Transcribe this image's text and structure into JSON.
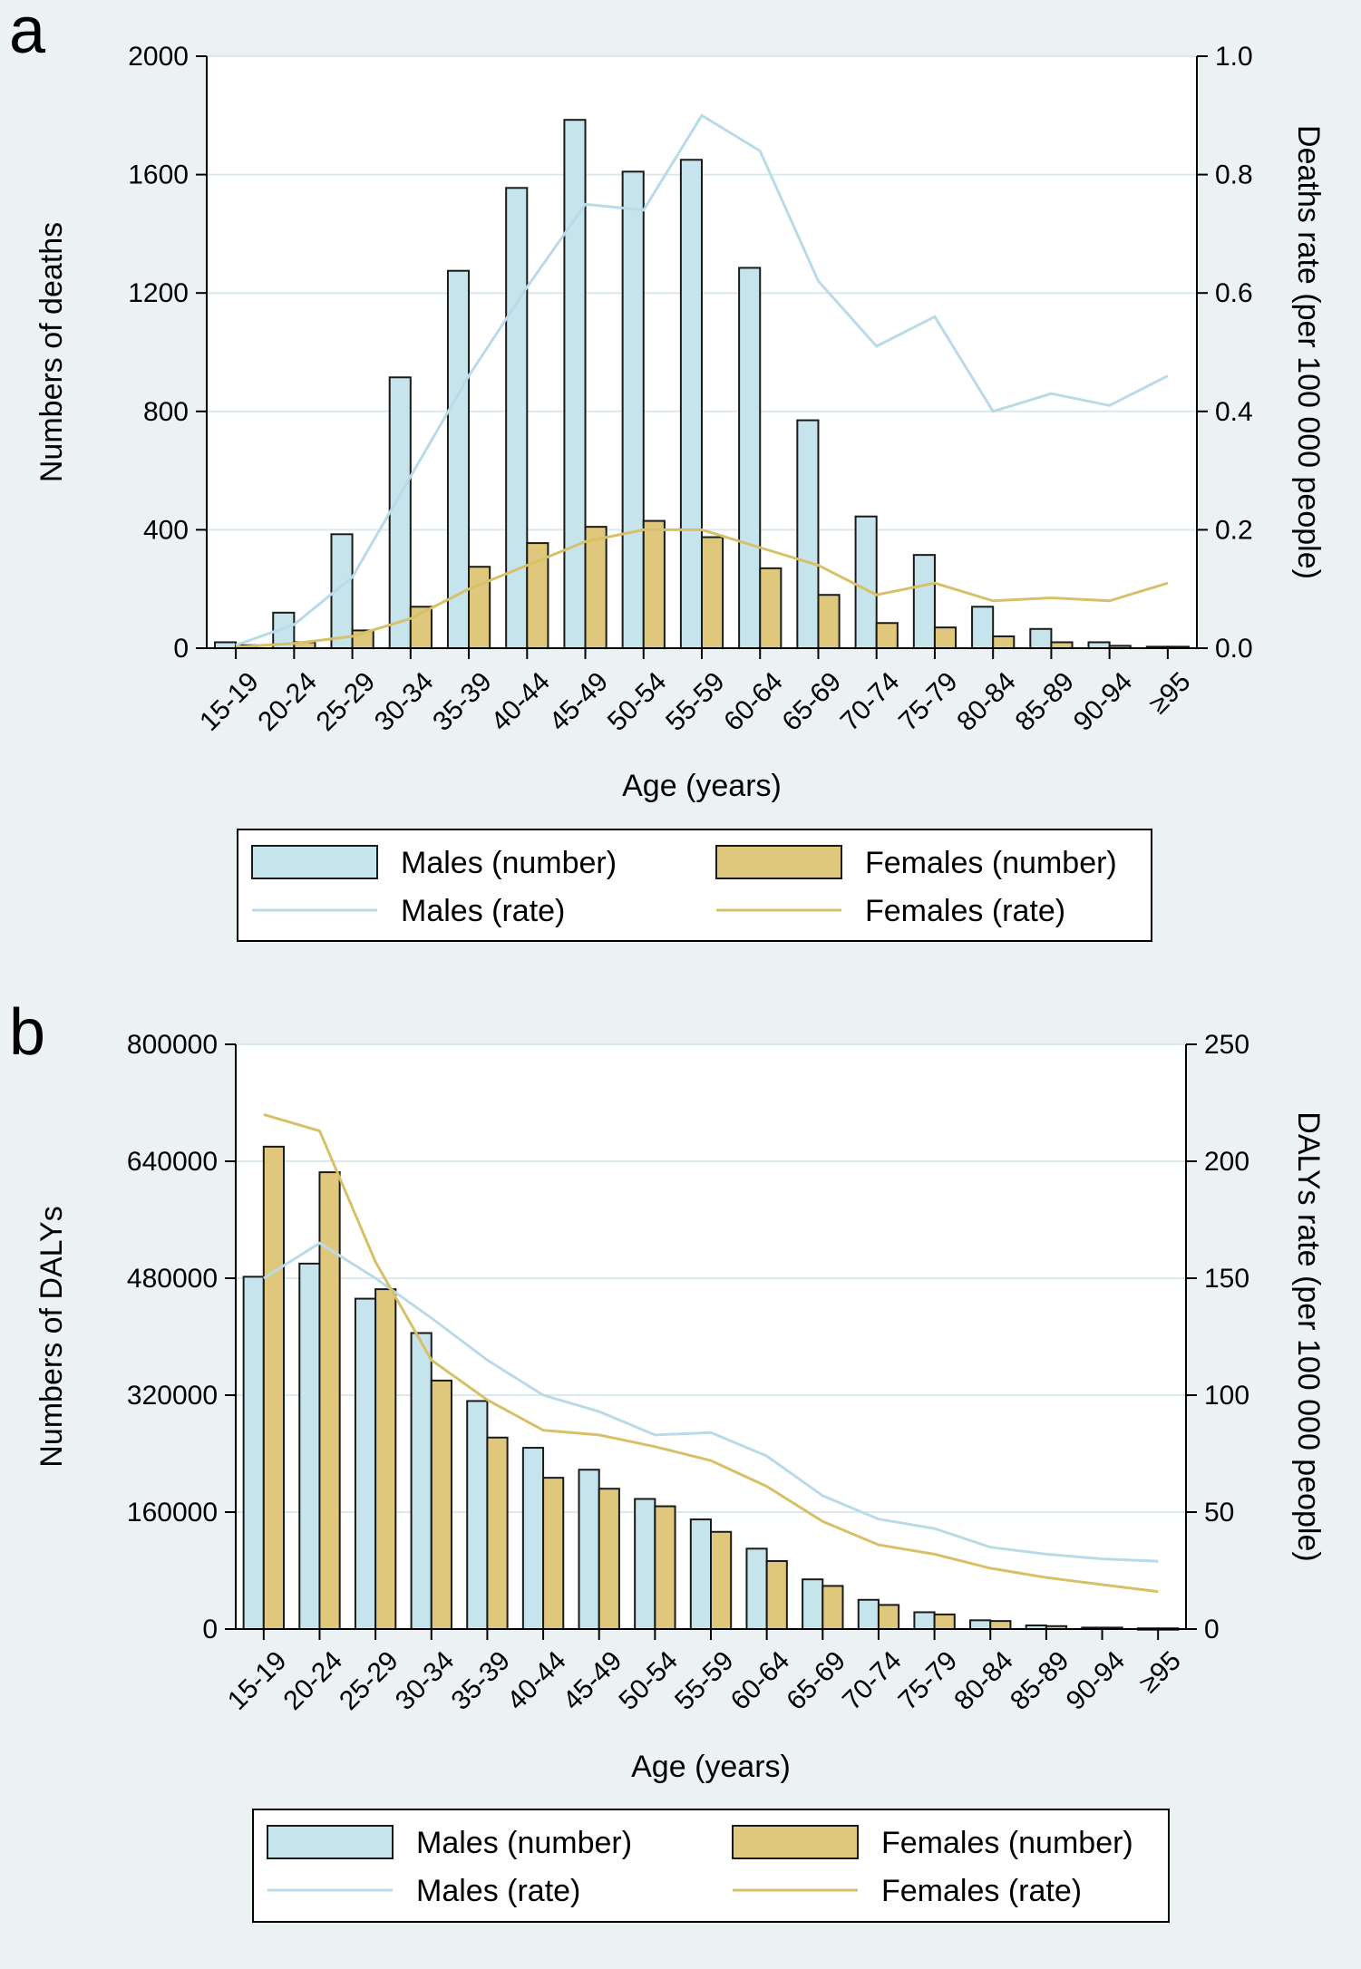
{
  "colors": {
    "males": "#c5e4ec",
    "females": "#dfc87c",
    "males_line": "#b9dbe8",
    "females_line": "#d8c068",
    "bar_stroke": "#1a1a1a",
    "grid": "#dbe8ee",
    "plot_bg": "#ffffff"
  },
  "chart_data": [
    {
      "type": "bar",
      "panel_label": "a",
      "title": "",
      "categories": [
        "15-19",
        "20-24",
        "25-29",
        "30-34",
        "35-39",
        "40-44",
        "45-49",
        "50-54",
        "55-59",
        "60-64",
        "65-69",
        "70-74",
        "75-79",
        "80-84",
        "85-89",
        "90-94",
        "≥95"
      ],
      "xlabel": "Age (years)",
      "ylabel": "Numbers of deaths",
      "y2label": "Deaths rate (per 100 000 people)",
      "ylim": [
        0,
        2000
      ],
      "y2lim": [
        0,
        1.0
      ],
      "yticks": [
        "0",
        "400",
        "800",
        "1200",
        "1600",
        "2000"
      ],
      "y2ticks": [
        "0.0",
        "0.2",
        "0.4",
        "0.6",
        "0.8",
        "1.0"
      ],
      "series": [
        {
          "name": "Males (number)",
          "kind": "bar",
          "axis": "left",
          "values": [
            20,
            120,
            385,
            915,
            1275,
            1555,
            1785,
            1610,
            1650,
            1285,
            770,
            445,
            315,
            140,
            65,
            20,
            5
          ]
        },
        {
          "name": "Females (number)",
          "kind": "bar",
          "axis": "left",
          "values": [
            10,
            20,
            60,
            140,
            275,
            355,
            410,
            430,
            375,
            270,
            180,
            85,
            70,
            40,
            20,
            8,
            5
          ]
        },
        {
          "name": "Males (rate)",
          "kind": "line",
          "axis": "right",
          "values": [
            0.005,
            0.04,
            0.12,
            0.29,
            0.46,
            0.61,
            0.75,
            0.74,
            0.9,
            0.84,
            0.62,
            0.51,
            0.56,
            0.4,
            0.43,
            0.41,
            0.46
          ]
        },
        {
          "name": "Females (rate)",
          "kind": "line",
          "axis": "right",
          "values": [
            0.002,
            0.008,
            0.02,
            0.05,
            0.1,
            0.14,
            0.18,
            0.2,
            0.2,
            0.17,
            0.14,
            0.09,
            0.11,
            0.08,
            0.085,
            0.08,
            0.11
          ]
        }
      ],
      "legend": [
        {
          "label": "Males (number)",
          "series": 0,
          "kind": "bar"
        },
        {
          "label": "Females (number)",
          "series": 1,
          "kind": "bar"
        },
        {
          "label": "Males (rate)",
          "series": 2,
          "kind": "line"
        },
        {
          "label": "Females (rate)",
          "series": 3,
          "kind": "line"
        }
      ],
      "legend_position": "bottom",
      "grid": true
    },
    {
      "type": "bar",
      "panel_label": "b",
      "title": "",
      "categories": [
        "15-19",
        "20-24",
        "25-29",
        "30-34",
        "35-39",
        "40-44",
        "45-49",
        "50-54",
        "55-59",
        "60-64",
        "65-69",
        "70-74",
        "75-79",
        "80-84",
        "85-89",
        "90-94",
        "≥95"
      ],
      "xlabel": "Age (years)",
      "ylabel": "Numbers of DALYs",
      "y2label": "DALYs rate (per 100 000 people)",
      "ylim": [
        0,
        800000
      ],
      "y2lim": [
        0,
        250
      ],
      "yticks": [
        "0",
        "160000",
        "320000",
        "480000",
        "640000",
        "800000"
      ],
      "y2ticks": [
        "0",
        "50",
        "100",
        "150",
        "200",
        "250"
      ],
      "series": [
        {
          "name": "Males (number)",
          "kind": "bar",
          "axis": "left",
          "values": [
            482000,
            500000,
            452000,
            405000,
            312000,
            248000,
            218000,
            178000,
            150000,
            110000,
            68000,
            40000,
            23000,
            12000,
            5000,
            2000,
            1000
          ]
        },
        {
          "name": "Females (number)",
          "kind": "bar",
          "axis": "left",
          "values": [
            660000,
            625000,
            465000,
            340000,
            262000,
            207000,
            192000,
            168000,
            133000,
            93000,
            59000,
            33000,
            20000,
            11000,
            4000,
            2000,
            1000
          ]
        },
        {
          "name": "Males (rate)",
          "kind": "line",
          "axis": "right",
          "values": [
            150,
            165,
            150,
            133,
            115,
            100,
            93,
            83,
            84,
            74,
            57,
            47,
            43,
            35,
            32,
            30,
            29
          ]
        },
        {
          "name": "Females (rate)",
          "kind": "line",
          "axis": "right",
          "values": [
            220,
            213,
            157,
            115,
            98,
            85,
            83,
            78,
            72,
            61,
            46,
            36,
            32,
            26,
            22,
            19,
            16
          ]
        }
      ],
      "legend": [
        {
          "label": "Males (number)",
          "series": 0,
          "kind": "bar"
        },
        {
          "label": "Females (number)",
          "series": 1,
          "kind": "bar"
        },
        {
          "label": "Males (rate)",
          "series": 2,
          "kind": "line"
        },
        {
          "label": "Females (rate)",
          "series": 3,
          "kind": "line"
        }
      ],
      "legend_position": "bottom",
      "grid": true
    }
  ]
}
